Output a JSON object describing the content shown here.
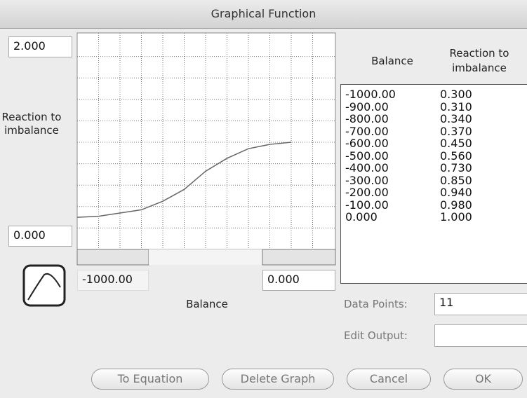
{
  "window": {
    "title": "Graphical Function"
  },
  "graph": {
    "y_max": "2.000",
    "y_min": "0.000",
    "y_label": "Reaction to imbalance",
    "x_min": "-1000.00",
    "x_max": "0.000",
    "x_label": "Balance"
  },
  "table": {
    "headers": [
      "Balance",
      "Reaction to imbalance"
    ],
    "rows": [
      [
        "-1000.00",
        "0.300"
      ],
      [
        "-900.00",
        "0.310"
      ],
      [
        "-800.00",
        "0.340"
      ],
      [
        "-700.00",
        "0.370"
      ],
      [
        "-600.00",
        "0.450"
      ],
      [
        "-500.00",
        "0.560"
      ],
      [
        "-400.00",
        "0.730"
      ],
      [
        "-300.00",
        "0.850"
      ],
      [
        "-200.00",
        "0.940"
      ],
      [
        "-100.00",
        "0.980"
      ],
      [
        "0.000",
        "1.000"
      ]
    ]
  },
  "fields": {
    "data_points": {
      "label": "Data Points:",
      "value": "11"
    },
    "edit_output": {
      "label": "Edit Output:"
    }
  },
  "buttons": [
    "To Equation",
    "Delete Graph",
    "Cancel",
    "OK"
  ]
}
